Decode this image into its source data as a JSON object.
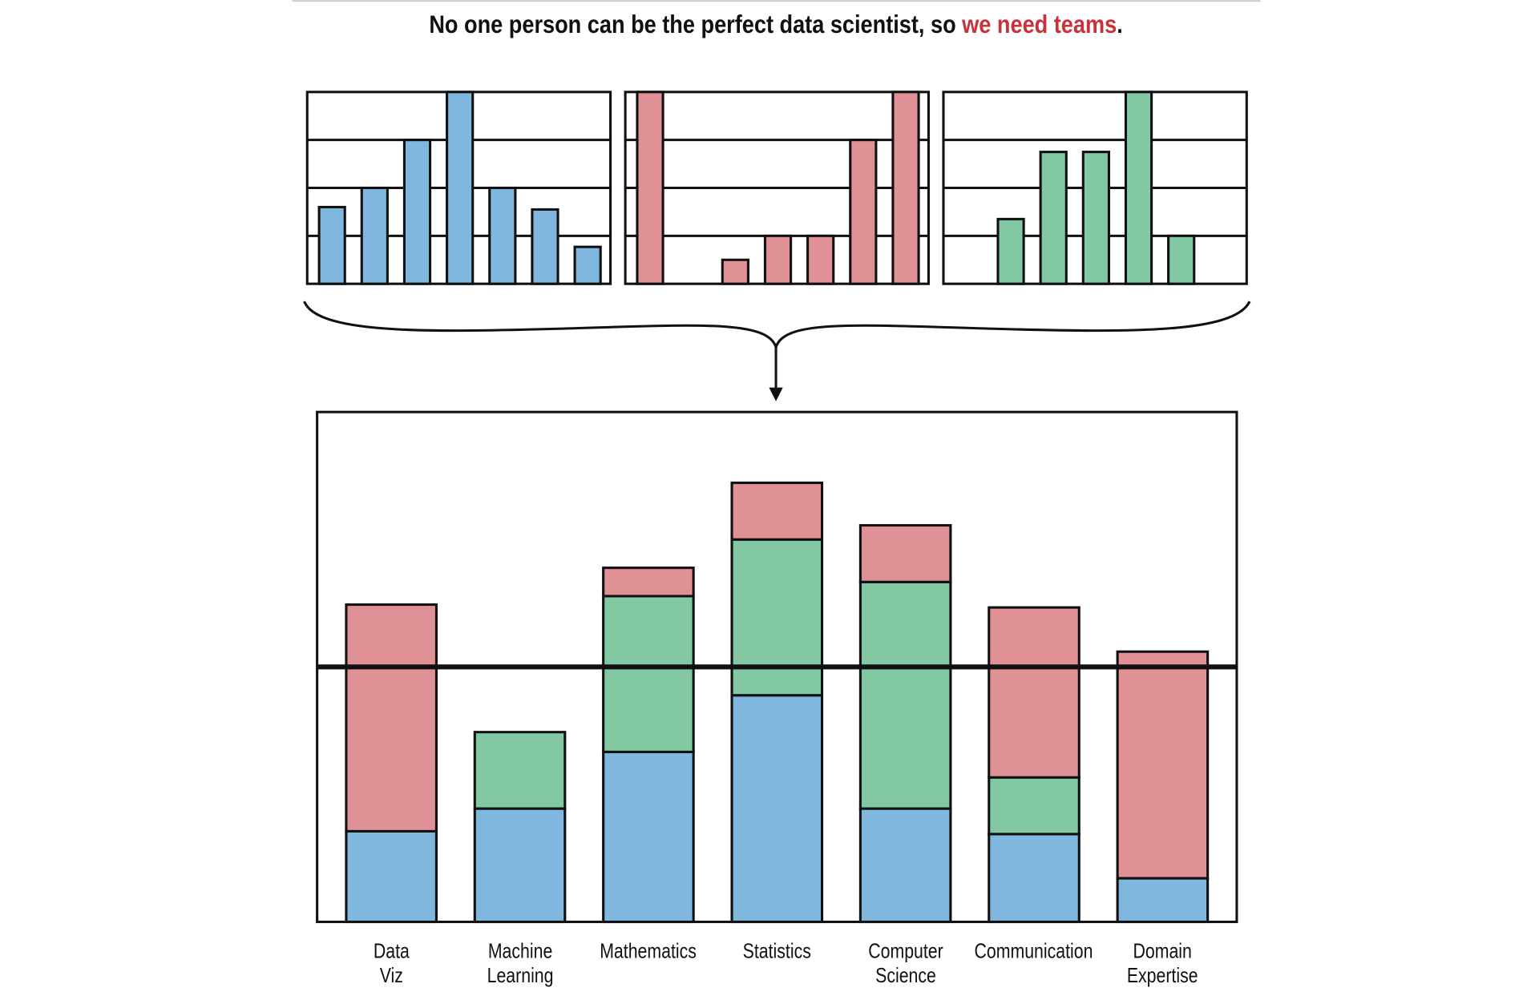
{
  "chart_data": {
    "type": "stacked_bar",
    "title": [
      "No one person can be the perfect data scientist, so ",
      "we need teams",
      "."
    ],
    "title_colors": [
      "#111111",
      "#c8323a",
      "#111111"
    ],
    "categories": [
      "Data\nViz",
      "Machine\nLearning",
      "Mathematics",
      "Statistics",
      "Computer\nScience",
      "Communication",
      "Domain\nExpertise"
    ],
    "series": [
      {
        "color": "#7fb7de",
        "values": [
          1.6,
          2,
          3,
          4,
          2,
          1.55,
          0.77
        ]
      },
      {
        "color": "#e09196",
        "values": [
          4,
          0,
          0.5,
          1,
          1,
          3,
          4
        ]
      },
      {
        "color": "#82c9a3",
        "values": [
          0,
          1.35,
          2.75,
          2.75,
          4,
          1,
          0
        ]
      }
    ],
    "small_ylim": [
      0,
      4
    ],
    "small_yticks": [
      1,
      2,
      3
    ],
    "ylim": [
      0,
      9
    ],
    "threshold": 4.5
  }
}
